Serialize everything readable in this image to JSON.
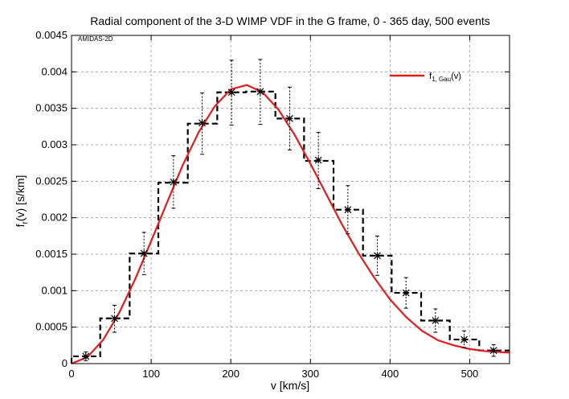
{
  "chart_data": {
    "type": "line",
    "title": "Radial component of the 3-D WIMP VDF in the G frame, 0 - 365 day, 500 events",
    "tag": "AMIDAS-2D",
    "xlabel": "v [km/s]",
    "ylabel_main": "f",
    "ylabel_sub": "r",
    "ylabel_rest": "(v) [s/km]",
    "xlim": [
      0,
      550
    ],
    "ylim": [
      0,
      0.0045
    ],
    "x_ticks": [
      0,
      100,
      200,
      300,
      400,
      500
    ],
    "x_tick_labels": [
      "0",
      "100",
      "200",
      "300",
      "400",
      "500"
    ],
    "y_ticks": [
      0,
      0.0005,
      0.001,
      0.0015,
      0.002,
      0.0025,
      0.003,
      0.0035,
      0.004,
      0.0045
    ],
    "y_tick_labels": [
      "0",
      "0.0005",
      "0.001",
      "0.0015",
      "0.002",
      "0.0025",
      "0.003",
      "0.0035",
      "0.004",
      "0.0045"
    ],
    "grid": true,
    "legend_position": "top-right",
    "legend": {
      "main": "f",
      "sub": "1, Gau",
      "rest": "(v)",
      "color": "#e41a1c"
    },
    "series": [
      {
        "kind": "histogram",
        "color": "#000000",
        "bins": [
          {
            "x0": 0,
            "x1": 36,
            "y": 0.0001
          },
          {
            "x0": 36,
            "x1": 73,
            "y": 0.00062
          },
          {
            "x0": 73,
            "x1": 109,
            "y": 0.00151
          },
          {
            "x0": 109,
            "x1": 146,
            "y": 0.00248
          },
          {
            "x0": 146,
            "x1": 183,
            "y": 0.00329
          },
          {
            "x0": 183,
            "x1": 219,
            "y": 0.00372
          },
          {
            "x0": 219,
            "x1": 256,
            "y": 0.00373
          },
          {
            "x0": 256,
            "x1": 292,
            "y": 0.00336
          },
          {
            "x0": 292,
            "x1": 329,
            "y": 0.00278
          },
          {
            "x0": 329,
            "x1": 366,
            "y": 0.00211
          },
          {
            "x0": 366,
            "x1": 402,
            "y": 0.00148
          },
          {
            "x0": 402,
            "x1": 439,
            "y": 0.00097
          },
          {
            "x0": 439,
            "x1": 475,
            "y": 0.00059
          },
          {
            "x0": 475,
            "x1": 512,
            "y": 0.00033
          },
          {
            "x0": 512,
            "x1": 550,
            "y": 0.00018
          }
        ]
      },
      {
        "kind": "points",
        "color": "#000000",
        "points": [
          {
            "x": 18,
            "y": 0.0001,
            "lo": 4e-05,
            "hi": 0.00016
          },
          {
            "x": 54,
            "y": 0.00062,
            "lo": 0.00043,
            "hi": 0.0008
          },
          {
            "x": 91,
            "y": 0.00151,
            "lo": 0.00122,
            "hi": 0.0018
          },
          {
            "x": 128,
            "y": 0.00249,
            "lo": 0.00213,
            "hi": 0.00285
          },
          {
            "x": 164,
            "y": 0.0033,
            "lo": 0.00287,
            "hi": 0.00371
          },
          {
            "x": 201,
            "y": 0.00372,
            "lo": 0.00327,
            "hi": 0.00416
          },
          {
            "x": 237,
            "y": 0.00373,
            "lo": 0.00328,
            "hi": 0.00417
          },
          {
            "x": 274,
            "y": 0.00336,
            "lo": 0.00293,
            "hi": 0.00379
          },
          {
            "x": 310,
            "y": 0.00279,
            "lo": 0.0024,
            "hi": 0.00317
          },
          {
            "x": 347,
            "y": 0.00211,
            "lo": 0.00178,
            "hi": 0.00244
          },
          {
            "x": 384,
            "y": 0.00148,
            "lo": 0.00121,
            "hi": 0.00175
          },
          {
            "x": 420,
            "y": 0.00097,
            "lo": 0.00076,
            "hi": 0.00118
          },
          {
            "x": 457,
            "y": 0.00059,
            "lo": 0.00043,
            "hi": 0.00075
          },
          {
            "x": 493,
            "y": 0.00033,
            "lo": 0.00022,
            "hi": 0.00045
          },
          {
            "x": 530,
            "y": 0.00018,
            "lo": 0.0001,
            "hi": 0.00026
          }
        ]
      },
      {
        "kind": "curve",
        "color": "#e41a1c",
        "x": [
          0,
          20,
          40,
          60,
          80,
          100,
          120,
          140,
          160,
          180,
          200,
          220,
          240,
          260,
          280,
          300,
          320,
          340,
          360,
          380,
          400,
          420,
          440,
          460,
          480,
          500,
          520,
          550
        ],
        "y": [
          0,
          9e-05,
          0.00033,
          0.0007,
          0.00116,
          0.00168,
          0.00221,
          0.00273,
          0.00318,
          0.00353,
          0.00376,
          0.00382,
          0.00372,
          0.00348,
          0.00314,
          0.00274,
          0.00232,
          0.0019,
          0.00152,
          0.00118,
          0.00088,
          0.00064,
          0.00045,
          0.00032,
          0.00025,
          0.0002,
          0.00017,
          0.00015
        ]
      }
    ]
  }
}
